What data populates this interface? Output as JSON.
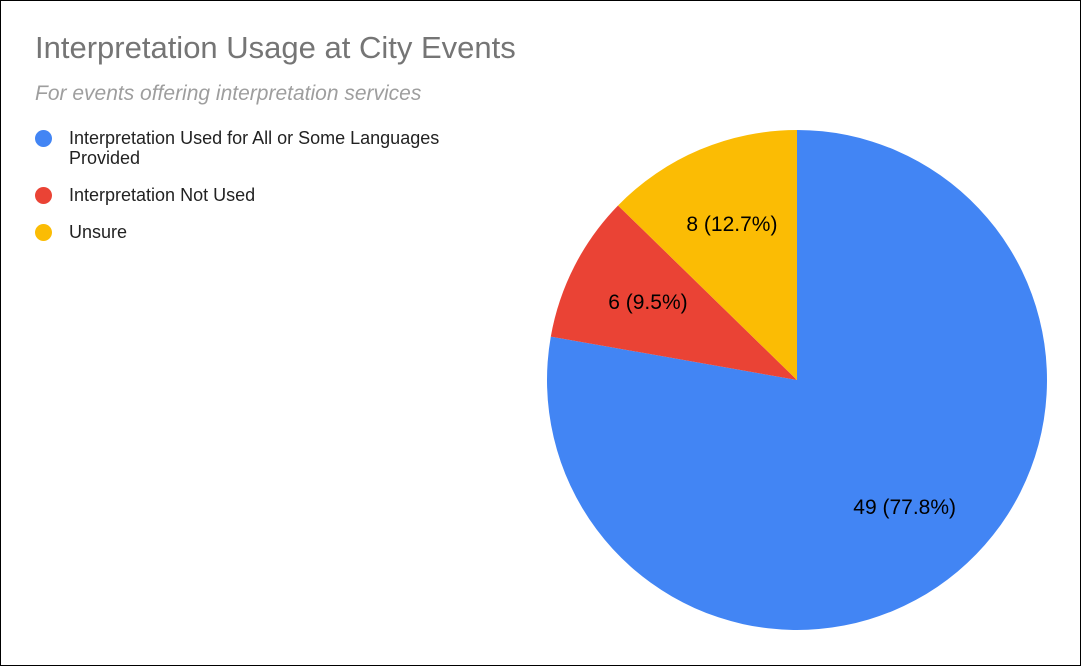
{
  "chart_data": {
    "type": "pie",
    "title": "Interpretation Usage at City Events",
    "subtitle": "For events offering interpretation services",
    "categories": [
      "Interpretation Used for All or Some Languages Provided",
      "Interpretation Not Used",
      "Unsure"
    ],
    "values": [
      49,
      6,
      8
    ],
    "value_labels": [
      "49 (77.8%)",
      "6 (9.5%)",
      "8 (12.7%)"
    ],
    "colors": [
      "#4285f4",
      "#ea4335",
      "#fbbc04"
    ],
    "legend": "top-left"
  }
}
